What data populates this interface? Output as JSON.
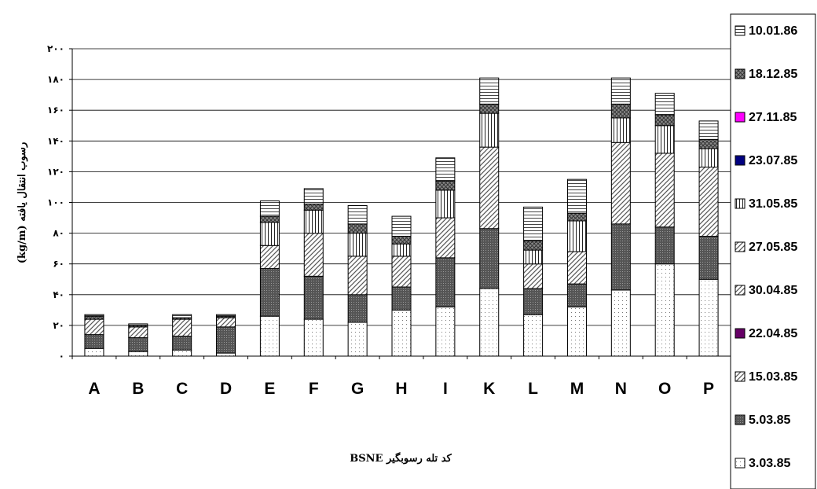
{
  "chart_data": {
    "type": "stacked-bar",
    "categories": [
      "A",
      "B",
      "C",
      "D",
      "E",
      "F",
      "G",
      "H",
      "I",
      "K",
      "L",
      "M",
      "N",
      "O",
      "P"
    ],
    "xlabel": "کد تله رسوبگیر BSNE",
    "ylabel": "رسوب انتقال یافته (kg/m)",
    "ylim": [
      0,
      200
    ],
    "yticks": [
      "۰",
      "۲۰",
      "۴۰",
      "۶۰",
      "۸۰",
      "۱۰۰",
      "۱۲۰",
      "۱۴۰",
      "۱۶۰",
      "۱۸۰",
      "۲۰۰"
    ],
    "grid": true,
    "legend": "right",
    "series": [
      {
        "name": "3.03.85",
        "pattern": "dots",
        "values": [
          5,
          3,
          4,
          2,
          26,
          24,
          22,
          30,
          32,
          44,
          27,
          32,
          43,
          60,
          50
        ]
      },
      {
        "name": "5.03.85",
        "pattern": "dark",
        "values": [
          9,
          9,
          9,
          17,
          31,
          28,
          18,
          15,
          32,
          39,
          17,
          15,
          43,
          24,
          28
        ]
      },
      {
        "name": "15.03.85",
        "pattern": "diag",
        "values": [
          0,
          0,
          0,
          0,
          0,
          0,
          0,
          0,
          0,
          0,
          0,
          0,
          0,
          0,
          0
        ]
      },
      {
        "name": "22.04.85",
        "pattern": "purple",
        "values": [
          0,
          0,
          0,
          0,
          0,
          0,
          0,
          0,
          0,
          0,
          0,
          0,
          0,
          0,
          0
        ]
      },
      {
        "name": "30.04.85",
        "pattern": "diag",
        "values": [
          0,
          0,
          0,
          0,
          0,
          0,
          0,
          0,
          0,
          0,
          0,
          0,
          0,
          0,
          0
        ]
      },
      {
        "name": "27.05.85",
        "pattern": "diag",
        "values": [
          10,
          7,
          11,
          6,
          15,
          28,
          25,
          20,
          26,
          53,
          16,
          21,
          53,
          48,
          45
        ]
      },
      {
        "name": "31.05.85",
        "pattern": "vlines",
        "values": [
          0,
          0,
          0,
          0,
          15,
          15,
          15,
          8,
          18,
          22,
          9,
          20,
          16,
          18,
          12
        ]
      },
      {
        "name": "23.07.85",
        "pattern": "navy",
        "values": [
          0,
          0,
          0,
          0,
          0,
          0,
          0,
          0,
          0,
          0,
          0,
          0,
          0,
          0,
          0
        ]
      },
      {
        "name": "27.11.85",
        "pattern": "magenta",
        "values": [
          0,
          0,
          0,
          0,
          0,
          0,
          0,
          0,
          0,
          0,
          0,
          0,
          0,
          0,
          0
        ]
      },
      {
        "name": "18.12.85",
        "pattern": "crosshatch",
        "values": [
          2,
          1,
          1,
          1,
          4,
          4,
          6,
          5,
          6,
          6,
          6,
          5,
          9,
          7,
          6
        ]
      },
      {
        "name": "10.01.86",
        "pattern": "hlines",
        "values": [
          1,
          1,
          2,
          1,
          10,
          10,
          12,
          13,
          15,
          17,
          22,
          22,
          17,
          14,
          12
        ]
      }
    ]
  }
}
